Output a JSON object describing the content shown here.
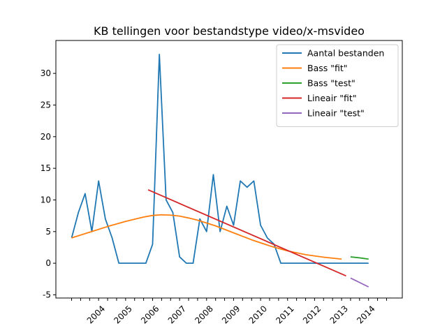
{
  "chart_data": {
    "type": "line",
    "title": "KB tellingen voor bestandstype video/x-msvideo",
    "xlabel": "",
    "ylabel": "",
    "ylim": [
      -5.5,
      35.2
    ],
    "yticks": [
      -5,
      0,
      5,
      10,
      15,
      20,
      25,
      30
    ],
    "xlim": [
      -1.75,
      36.75
    ],
    "xticks_minor_count": 36,
    "x_tick_labels": [
      {
        "x": 3,
        "label": "2004"
      },
      {
        "x": 6,
        "label": "2005"
      },
      {
        "x": 9,
        "label": "2006"
      },
      {
        "x": 12,
        "label": "2007"
      },
      {
        "x": 15,
        "label": "2008"
      },
      {
        "x": 18,
        "label": "2009"
      },
      {
        "x": 21,
        "label": "2010"
      },
      {
        "x": 24,
        "label": "2011"
      },
      {
        "x": 27,
        "label": "2012"
      },
      {
        "x": 30,
        "label": "2013"
      },
      {
        "x": 33,
        "label": "2014"
      }
    ],
    "legend_position": "top-right",
    "series": [
      {
        "name": "Aantal bestanden",
        "color": "#1f77b4",
        "x": [
          0,
          0.75,
          1.5,
          2.25,
          3,
          3.75,
          4.5,
          5.25,
          6,
          6.75,
          7.5,
          8.25,
          9,
          9.75,
          10.5,
          11.25,
          12,
          12.75,
          13.5,
          14.25,
          15,
          15.75,
          16.5,
          17.25,
          18,
          18.75,
          19.5,
          20.25,
          21,
          21.75,
          22.5,
          23.25,
          24,
          24.75,
          25.5,
          26.25,
          27,
          27.75,
          28.5,
          29.25,
          30,
          30.75,
          31.5,
          32.25,
          33
        ],
        "values": [
          4,
          8,
          11,
          5,
          13,
          7,
          4,
          0,
          0,
          0,
          0,
          0,
          3,
          33,
          10,
          8,
          1,
          0,
          0,
          7,
          5,
          14,
          5,
          9,
          6,
          13,
          12,
          13,
          6,
          4,
          3,
          0,
          0,
          0,
          0,
          0,
          0,
          0,
          0,
          0,
          0,
          0,
          0,
          0,
          0
        ]
      },
      {
        "name": "Bass \"fit\"",
        "color": "#ff7f0e",
        "x": [
          0,
          2,
          4,
          6,
          8,
          9,
          10,
          11,
          12,
          13,
          14,
          16,
          18,
          20,
          22,
          24,
          26,
          28,
          30
        ],
        "values": [
          4,
          4.9,
          5.8,
          6.6,
          7.3,
          7.55,
          7.65,
          7.6,
          7.45,
          7.15,
          6.8,
          5.9,
          4.8,
          3.7,
          2.75,
          1.95,
          1.35,
          0.95,
          0.65
        ]
      },
      {
        "name": "Bass \"test\"",
        "color": "#2ca02c",
        "x": [
          31,
          32,
          33
        ],
        "values": [
          1.0,
          0.85,
          0.65
        ]
      },
      {
        "name": "Lineair \"fit\"",
        "color": "#d62728",
        "x": [
          8.5,
          30.5
        ],
        "values": [
          11.6,
          -2.0
        ]
      },
      {
        "name": "Lineair \"test\"",
        "color": "#9467bd",
        "x": [
          31,
          33
        ],
        "values": [
          -2.35,
          -3.75
        ]
      }
    ]
  }
}
